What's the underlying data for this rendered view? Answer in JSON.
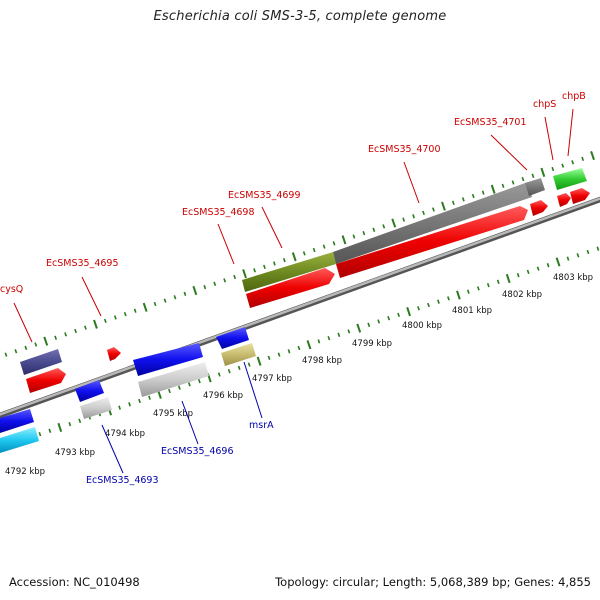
{
  "title": "Escherichia coli SMS-3-5, complete genome",
  "footer": {
    "accession": "Accession: NC_010498",
    "summary": "Topology: circular; Length: 5,068,389 bp; Genes: 4,855"
  },
  "colors": {
    "forward_label": "#cc0000",
    "reverse_label": "#0000aa",
    "tick": "#2a7a1e",
    "backbone": "#8a8a8a"
  },
  "scale_labels": [
    "4792 kbp",
    "4793 kbp",
    "4794 kbp",
    "4795 kbp",
    "4796 kbp",
    "4797 kbp",
    "4798 kbp",
    "4799 kbp",
    "4800 kbp",
    "4801 kbp",
    "4802 kbp",
    "4803 kbp"
  ],
  "forward_genes": [
    "cysQ",
    "EcSMS35_4695",
    "EcSMS35_4698",
    "EcSMS35_4699",
    "EcSMS35_4700",
    "EcSMS35_4701",
    "chpS",
    "chpB"
  ],
  "reverse_genes": [
    "EcSMS35_4693",
    "EcSMS35_4696",
    "msrA"
  ]
}
